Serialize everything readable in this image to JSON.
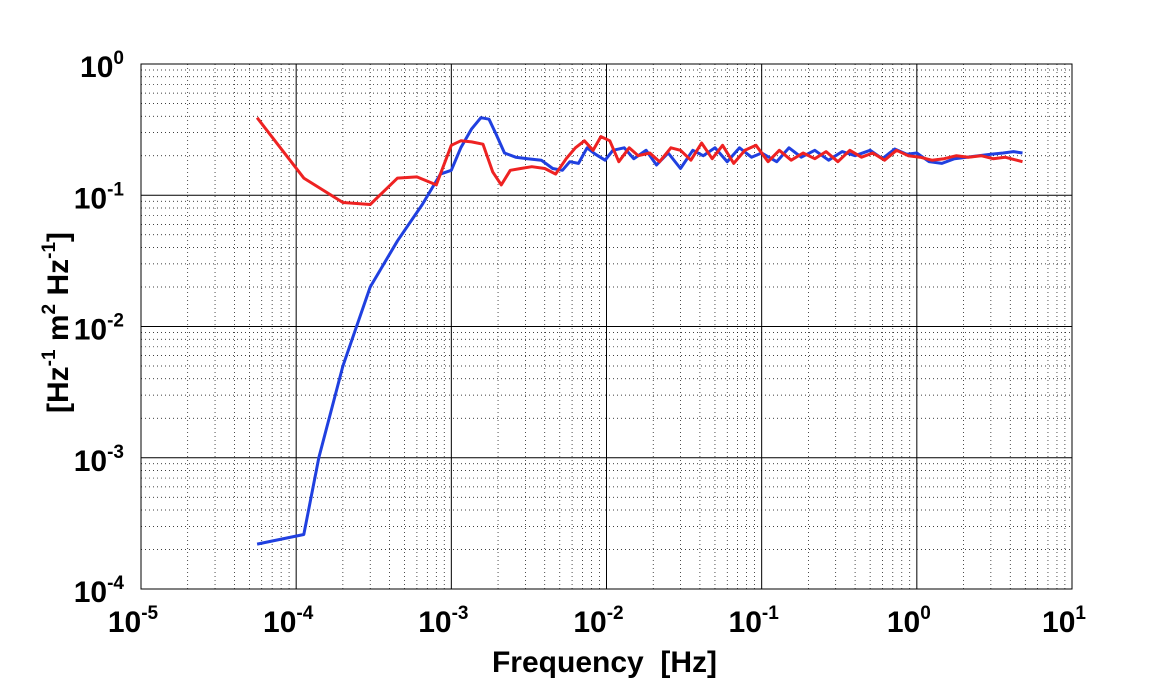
{
  "chart_data": {
    "type": "line",
    "title": "",
    "xlabel": "Frequency  [Hz]",
    "ylabel_parts": [
      "[Hz",
      "-1",
      " m",
      "2",
      " Hz",
      "-1",
      "]"
    ],
    "xscale": "log",
    "yscale": "log",
    "xlim": [
      1e-05,
      10
    ],
    "ylim": [
      0.0001,
      1
    ],
    "grid": true,
    "x_ticks": [
      {
        "value": 1e-05,
        "base": "10",
        "exp": "-5"
      },
      {
        "value": 0.0001,
        "base": "10",
        "exp": "-4"
      },
      {
        "value": 0.001,
        "base": "10",
        "exp": "-3"
      },
      {
        "value": 0.01,
        "base": "10",
        "exp": "-2"
      },
      {
        "value": 0.1,
        "base": "10",
        "exp": "-1"
      },
      {
        "value": 1,
        "base": "10",
        "exp": "0"
      },
      {
        "value": 10,
        "base": "10",
        "exp": "1"
      }
    ],
    "y_ticks": [
      {
        "value": 0.0001,
        "base": "10",
        "exp": "-4"
      },
      {
        "value": 0.001,
        "base": "10",
        "exp": "-3"
      },
      {
        "value": 0.01,
        "base": "10",
        "exp": "-2"
      },
      {
        "value": 0.1,
        "base": "10",
        "exp": "-1"
      },
      {
        "value": 1,
        "base": "10",
        "exp": "0"
      }
    ],
    "series": [
      {
        "color": "#2040e0",
        "x": [
          5.6e-05,
          0.000112,
          0.00014,
          0.0002,
          0.0003,
          0.00045,
          0.00065,
          0.00085,
          0.001,
          0.00115,
          0.00135,
          0.00155,
          0.00175,
          0.00195,
          0.0022,
          0.0026,
          0.0031,
          0.0038,
          0.0045,
          0.0052,
          0.0058,
          0.0066,
          0.0075,
          0.0085,
          0.0098,
          0.011,
          0.013,
          0.015,
          0.018,
          0.021,
          0.025,
          0.03,
          0.036,
          0.042,
          0.05,
          0.06,
          0.072,
          0.086,
          0.1,
          0.125,
          0.15,
          0.18,
          0.22,
          0.27,
          0.33,
          0.4,
          0.5,
          0.6,
          0.72,
          0.86,
          1.0,
          1.2,
          1.45,
          1.75,
          2.1,
          2.5,
          3.0,
          3.6,
          4.2,
          4.8
        ],
        "y": [
          0.00022,
          0.00026,
          0.001,
          0.005,
          0.02,
          0.045,
          0.085,
          0.145,
          0.155,
          0.23,
          0.32,
          0.39,
          0.38,
          0.29,
          0.21,
          0.195,
          0.19,
          0.185,
          0.16,
          0.155,
          0.18,
          0.175,
          0.23,
          0.205,
          0.185,
          0.22,
          0.23,
          0.19,
          0.22,
          0.17,
          0.21,
          0.16,
          0.22,
          0.2,
          0.23,
          0.18,
          0.23,
          0.195,
          0.21,
          0.18,
          0.23,
          0.195,
          0.22,
          0.185,
          0.215,
          0.2,
          0.22,
          0.19,
          0.225,
          0.205,
          0.21,
          0.18,
          0.175,
          0.19,
          0.195,
          0.2,
          0.205,
          0.21,
          0.215,
          0.21
        ]
      },
      {
        "color": "#ee2222",
        "x": [
          5.6e-05,
          0.000112,
          0.0002,
          0.0003,
          0.00045,
          0.0006,
          0.0008,
          0.001,
          0.00115,
          0.00135,
          0.0016,
          0.00185,
          0.0021,
          0.0024,
          0.0028,
          0.0033,
          0.004,
          0.0047,
          0.0055,
          0.0063,
          0.0072,
          0.0082,
          0.0092,
          0.0105,
          0.012,
          0.014,
          0.016,
          0.019,
          0.022,
          0.026,
          0.03,
          0.035,
          0.041,
          0.048,
          0.056,
          0.066,
          0.078,
          0.092,
          0.11,
          0.13,
          0.155,
          0.185,
          0.22,
          0.26,
          0.31,
          0.37,
          0.44,
          0.52,
          0.62,
          0.74,
          0.88,
          1.05,
          1.25,
          1.5,
          1.8,
          2.15,
          2.6,
          3.1,
          3.7,
          4.4,
          4.8
        ],
        "y": [
          0.39,
          0.135,
          0.088,
          0.085,
          0.135,
          0.138,
          0.12,
          0.24,
          0.26,
          0.255,
          0.245,
          0.15,
          0.12,
          0.155,
          0.16,
          0.165,
          0.16,
          0.145,
          0.19,
          0.23,
          0.26,
          0.22,
          0.28,
          0.26,
          0.18,
          0.23,
          0.2,
          0.21,
          0.18,
          0.23,
          0.22,
          0.185,
          0.25,
          0.19,
          0.24,
          0.175,
          0.22,
          0.24,
          0.18,
          0.22,
          0.185,
          0.21,
          0.19,
          0.215,
          0.18,
          0.22,
          0.195,
          0.21,
          0.185,
          0.22,
          0.2,
          0.195,
          0.185,
          0.19,
          0.2,
          0.195,
          0.2,
          0.19,
          0.195,
          0.185,
          0.18
        ]
      }
    ]
  }
}
